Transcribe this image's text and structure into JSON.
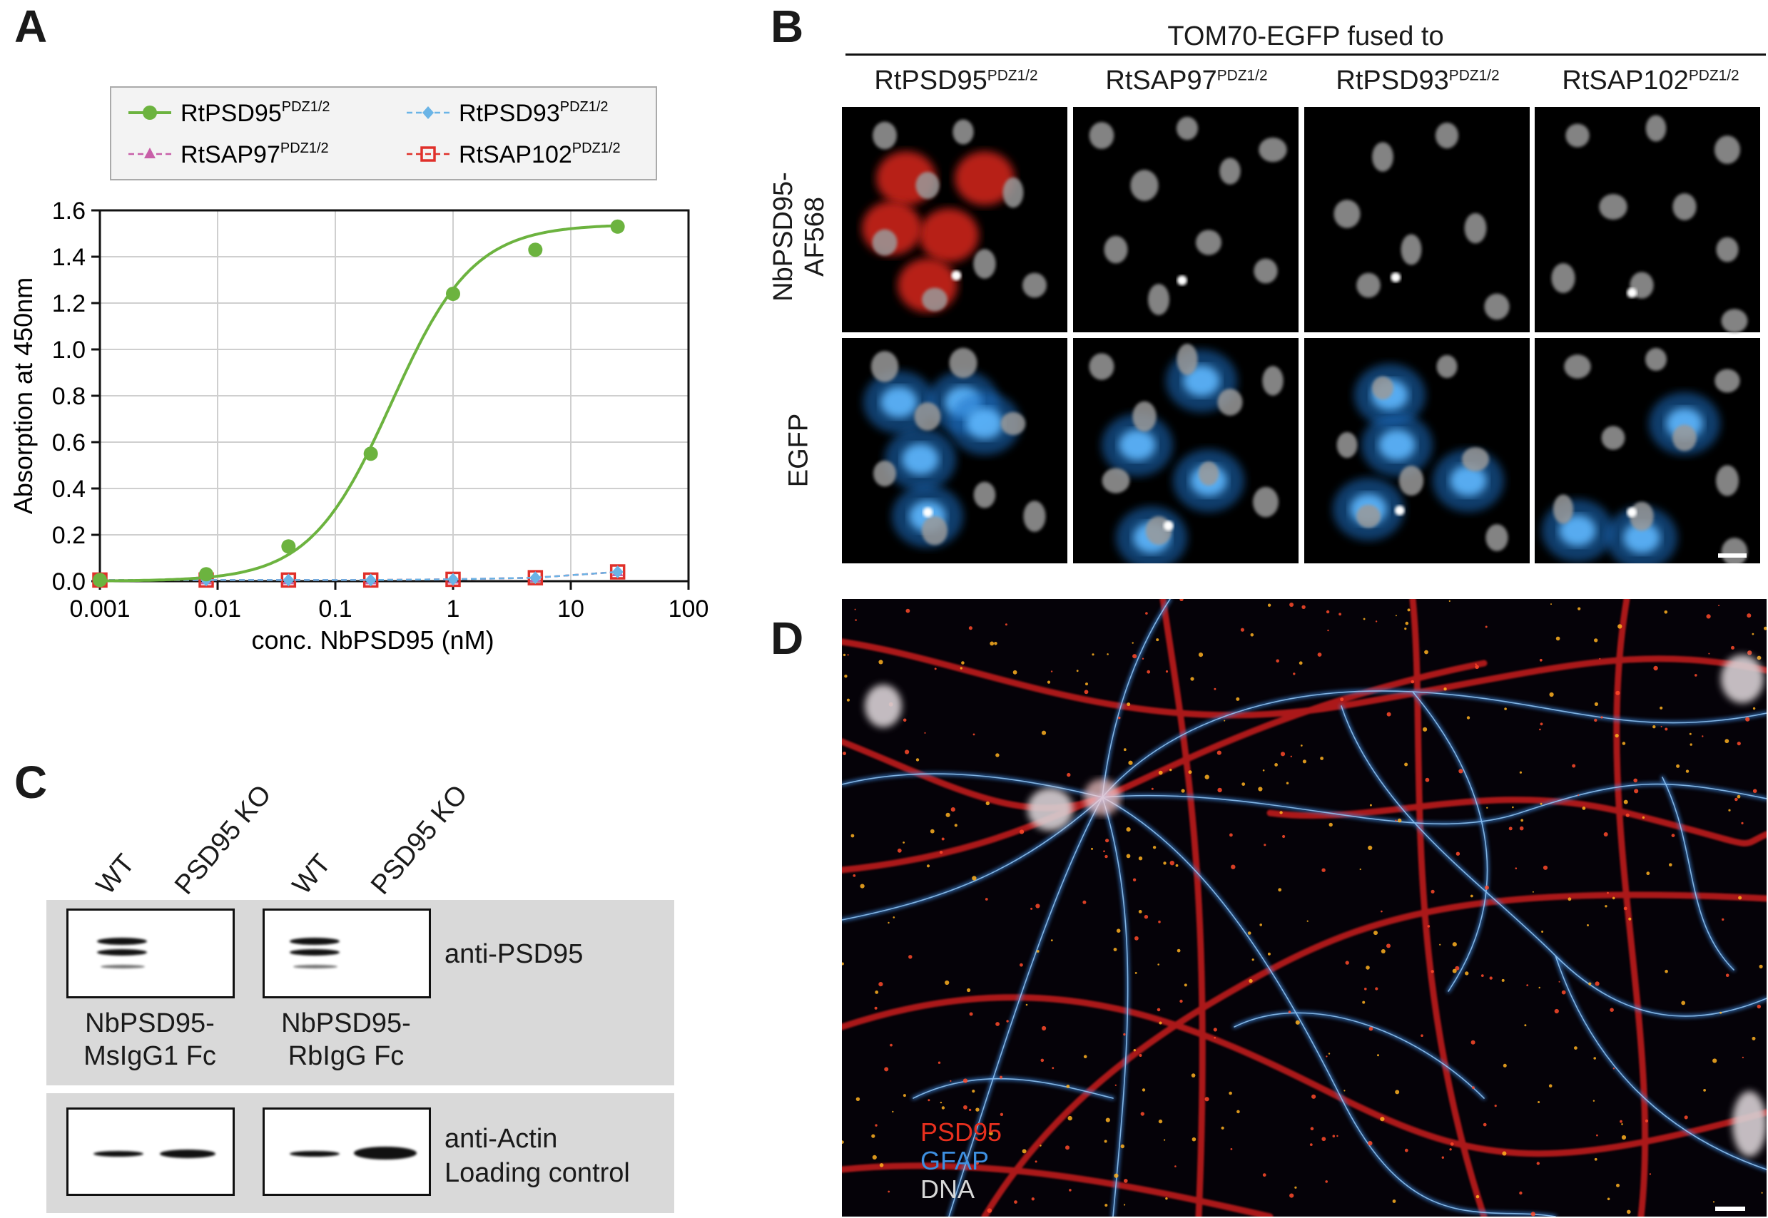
{
  "panels": {
    "a": "A",
    "b": "B",
    "c": "C",
    "d": "D"
  },
  "chart_data": {
    "type": "line",
    "xscale": "log",
    "xlim": [
      0.001,
      100
    ],
    "ylim": [
      0,
      1.6
    ],
    "xlabel": "conc. NbPSD95 (nM)",
    "ylabel": "Absorption at 450nm",
    "xticks": [
      "0.001",
      "0.01",
      "0.1",
      "1",
      "10",
      "100"
    ],
    "xtick_values": [
      0.001,
      0.01,
      0.1,
      1,
      10,
      100
    ],
    "yticks": [
      "0.0",
      "0.2",
      "0.4",
      "0.6",
      "0.8",
      "1.0",
      "1.2",
      "1.4",
      "1.6"
    ],
    "ytick_values": [
      0,
      0.2,
      0.4,
      0.6,
      0.8,
      1.0,
      1.2,
      1.4,
      1.6
    ],
    "grid": true,
    "legend_position": "top",
    "x": [
      0.001,
      0.008,
      0.04,
      0.2,
      1,
      5,
      25
    ],
    "series": [
      {
        "name": "RtPSD95",
        "sup": "PDZ1/2",
        "color": "#6cb33f",
        "marker": "circle",
        "dash": false,
        "values": [
          0.005,
          0.03,
          0.15,
          0.55,
          1.24,
          1.43,
          1.53
        ]
      },
      {
        "name": "RtPSD93",
        "sup": "PDZ1/2",
        "color": "#6ab4e6",
        "marker": "diamond",
        "dash": true,
        "values": [
          0.005,
          0.005,
          0.005,
          0.005,
          0.008,
          0.015,
          0.04
        ]
      },
      {
        "name": "RtSAP97",
        "sup": "PDZ1/2",
        "color": "#c85fa8",
        "marker": "triangle",
        "dash": true,
        "values": [
          0.005,
          0.005,
          0.005,
          0.005,
          0.008,
          0.015,
          0.04
        ]
      },
      {
        "name": "RtSAP102",
        "sup": "PDZ1/2",
        "color": "#e0302a",
        "marker": "square",
        "dash": true,
        "values": [
          0.005,
          0.005,
          0.005,
          0.005,
          0.008,
          0.015,
          0.04
        ]
      }
    ]
  },
  "panel_b": {
    "header": "TOM70-EGFP fused to",
    "columns": [
      {
        "name": "RtPSD95",
        "sup": "PDZ1/2"
      },
      {
        "name": "RtSAP97",
        "sup": "PDZ1/2"
      },
      {
        "name": "RtPSD93",
        "sup": "PDZ1/2"
      },
      {
        "name": "RtSAP102",
        "sup": "PDZ1/2"
      }
    ],
    "row1_line1": "NbPSD95-",
    "row1_line2": "AF568",
    "row2": "EGFP"
  },
  "panel_c": {
    "lanes": [
      "WT",
      "PSD95 KO",
      "WT",
      "PSD95 KO"
    ],
    "blot1_label": "anti-PSD95",
    "left_caption_1": "NbPSD95-",
    "left_caption_2": "MsIgG1 Fc",
    "right_caption_1": "NbPSD95-",
    "right_caption_2": "RbIgG Fc",
    "blot2_label_1": "anti-Actin",
    "blot2_label_2": "Loading control"
  },
  "panel_d": {
    "legend": [
      "PSD95",
      "GFAP",
      "DNA"
    ],
    "legend_colors": [
      "#e8301e",
      "#3d8fe0",
      "#d8d8d8"
    ]
  }
}
